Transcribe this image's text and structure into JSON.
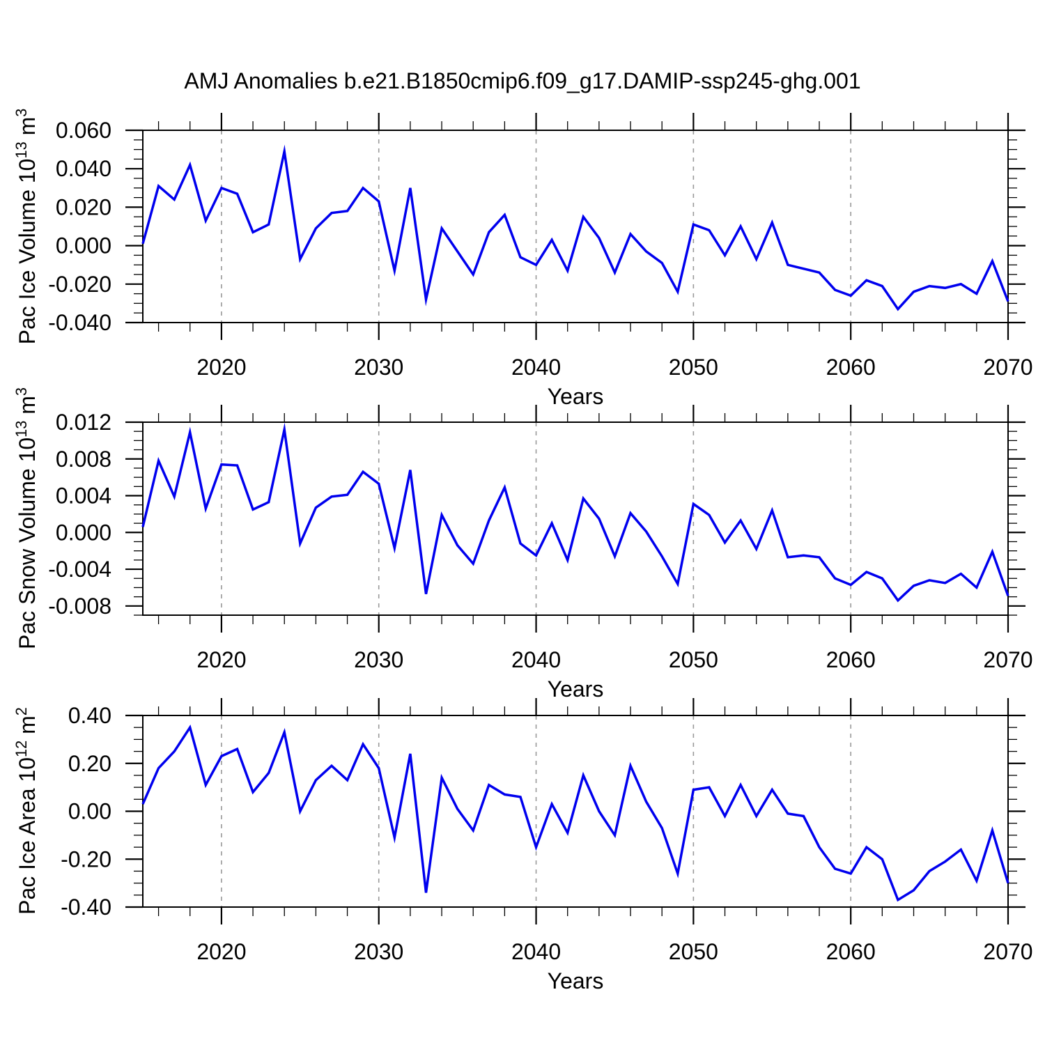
{
  "title": "AMJ Anomalies b.e21.B1850cmip6.f09_g17.DAMIP-ssp245-ghg.001",
  "colors": {
    "line": "#0000EE",
    "grid": "#999999",
    "axis": "#000000",
    "text": "#000000",
    "background": "#FFFFFF"
  },
  "years": [
    2015,
    2016,
    2017,
    2018,
    2019,
    2020,
    2021,
    2022,
    2023,
    2024,
    2025,
    2026,
    2027,
    2028,
    2029,
    2030,
    2031,
    2032,
    2033,
    2034,
    2035,
    2036,
    2037,
    2038,
    2039,
    2040,
    2041,
    2042,
    2043,
    2044,
    2045,
    2046,
    2047,
    2048,
    2049,
    2050,
    2051,
    2052,
    2053,
    2054,
    2055,
    2056,
    2057,
    2058,
    2059,
    2060,
    2061,
    2062,
    2063,
    2064,
    2065,
    2066,
    2067,
    2068,
    2069,
    2070
  ],
  "chart_data": [
    {
      "type": "line",
      "title": "Pac Ice Volume anomalies",
      "xlabel": "Years",
      "ylabel": {
        "main": "Pac Ice Volume 10",
        "sup1": "13",
        "mid": " m",
        "sup2": "3",
        "full": "Pac Ice Volume 10^13 m^3"
      },
      "x_start": 2015,
      "x_end": 2070,
      "ylim": [
        -0.04,
        0.06
      ],
      "ytick_values": [
        0.06,
        0.04,
        0.02,
        0.0,
        -0.02,
        -0.04
      ],
      "ytick_labels": [
        "0.060",
        "0.040",
        "0.020",
        "0.000",
        "-0.020",
        "-0.040"
      ],
      "yminor_step": 0.005,
      "xtick_values": [
        2020,
        2030,
        2040,
        2050,
        2060,
        2070
      ],
      "xtick_labels": [
        "2020",
        "2030",
        "2040",
        "2050",
        "2060",
        "2070"
      ],
      "xminor_step": 2,
      "grid_x": [
        2020,
        2030,
        2040,
        2050,
        2060
      ],
      "grid_on": true,
      "legend": "none",
      "values": [
        0.001,
        0.031,
        0.024,
        0.042,
        0.013,
        0.03,
        0.027,
        0.007,
        0.011,
        0.049,
        -0.007,
        0.009,
        0.017,
        0.018,
        0.03,
        0.023,
        -0.013,
        0.03,
        -0.028,
        0.009,
        -0.003,
        -0.015,
        0.007,
        0.016,
        -0.006,
        -0.01,
        0.003,
        -0.013,
        0.015,
        0.004,
        -0.014,
        0.006,
        -0.003,
        -0.009,
        -0.024,
        0.011,
        0.008,
        -0.005,
        0.01,
        -0.007,
        0.012,
        -0.01,
        -0.012,
        -0.014,
        -0.023,
        -0.026,
        -0.018,
        -0.021,
        -0.033,
        -0.024,
        -0.021,
        -0.022,
        -0.02,
        -0.025,
        -0.008,
        -0.029
      ]
    },
    {
      "type": "line",
      "title": "Pac Snow Volume anomalies",
      "xlabel": "Years",
      "ylabel": {
        "main": "Pac Snow Volume 10",
        "sup1": "13",
        "mid": " m",
        "sup2": "3",
        "full": "Pac Snow Volume 10^13 m^3"
      },
      "x_start": 2015,
      "x_end": 2070,
      "ylim": [
        -0.009,
        0.012
      ],
      "ytick_values": [
        0.012,
        0.008,
        0.004,
        0.0,
        -0.004,
        -0.008
      ],
      "ytick_labels": [
        "0.012",
        "0.008",
        "0.004",
        "0.000",
        "-0.004",
        "-0.008"
      ],
      "yminor_step": 0.001,
      "xtick_values": [
        2020,
        2030,
        2040,
        2050,
        2060,
        2070
      ],
      "xtick_labels": [
        "2020",
        "2030",
        "2040",
        "2050",
        "2060",
        "2070"
      ],
      "xminor_step": 2,
      "grid_x": [
        2020,
        2030,
        2040,
        2050,
        2060
      ],
      "grid_on": true,
      "legend": "none",
      "values": [
        0.0006,
        0.0078,
        0.0039,
        0.0109,
        0.0026,
        0.0074,
        0.0073,
        0.0025,
        0.0033,
        0.0112,
        -0.0012,
        0.0027,
        0.0039,
        0.0041,
        0.0066,
        0.0053,
        -0.0017,
        0.0068,
        -0.0067,
        0.0019,
        -0.0014,
        -0.0034,
        0.0013,
        0.0049,
        -0.0012,
        -0.0025,
        0.001,
        -0.003,
        0.0037,
        0.0015,
        -0.0026,
        0.0021,
        0.0001,
        -0.0026,
        -0.0056,
        0.0031,
        0.0019,
        -0.0011,
        0.0013,
        -0.0018,
        0.0024,
        -0.0027,
        -0.0025,
        -0.0027,
        -0.005,
        -0.0057,
        -0.0043,
        -0.005,
        -0.0074,
        -0.0058,
        -0.0052,
        -0.0055,
        -0.0045,
        -0.006,
        -0.0021,
        -0.0069
      ]
    },
    {
      "type": "line",
      "title": "Pac Ice Area anomalies",
      "xlabel": "Years",
      "ylabel": {
        "main": "Pac Ice Area 10",
        "sup1": "12",
        "mid": " m",
        "sup2": "2",
        "full": "Pac Ice Area 10^12 m^2"
      },
      "x_start": 2015,
      "x_end": 2070,
      "ylim": [
        -0.4,
        0.4
      ],
      "ytick_values": [
        0.4,
        0.2,
        0.0,
        -0.2,
        -0.4
      ],
      "ytick_labels": [
        "0.40",
        "0.20",
        "0.00",
        "-0.20",
        "-0.40"
      ],
      "yminor_step": 0.05,
      "xtick_values": [
        2020,
        2030,
        2040,
        2050,
        2060,
        2070
      ],
      "xtick_labels": [
        "2020",
        "2030",
        "2040",
        "2050",
        "2060",
        "2070"
      ],
      "xminor_step": 2,
      "grid_x": [
        2020,
        2030,
        2040,
        2050,
        2060
      ],
      "grid_on": true,
      "legend": "none",
      "values": [
        0.03,
        0.18,
        0.25,
        0.35,
        0.11,
        0.23,
        0.26,
        0.08,
        0.16,
        0.33,
        0.0,
        0.13,
        0.19,
        0.13,
        0.28,
        0.18,
        -0.11,
        0.24,
        -0.34,
        0.14,
        0.01,
        -0.08,
        0.11,
        0.07,
        0.06,
        -0.15,
        0.03,
        -0.09,
        0.15,
        0.0,
        -0.1,
        0.19,
        0.04,
        -0.07,
        -0.26,
        0.09,
        0.1,
        -0.02,
        0.11,
        -0.02,
        0.09,
        -0.01,
        -0.02,
        -0.15,
        -0.24,
        -0.26,
        -0.15,
        -0.2,
        -0.37,
        -0.33,
        -0.25,
        -0.21,
        -0.16,
        -0.29,
        -0.08,
        -0.3
      ]
    }
  ]
}
